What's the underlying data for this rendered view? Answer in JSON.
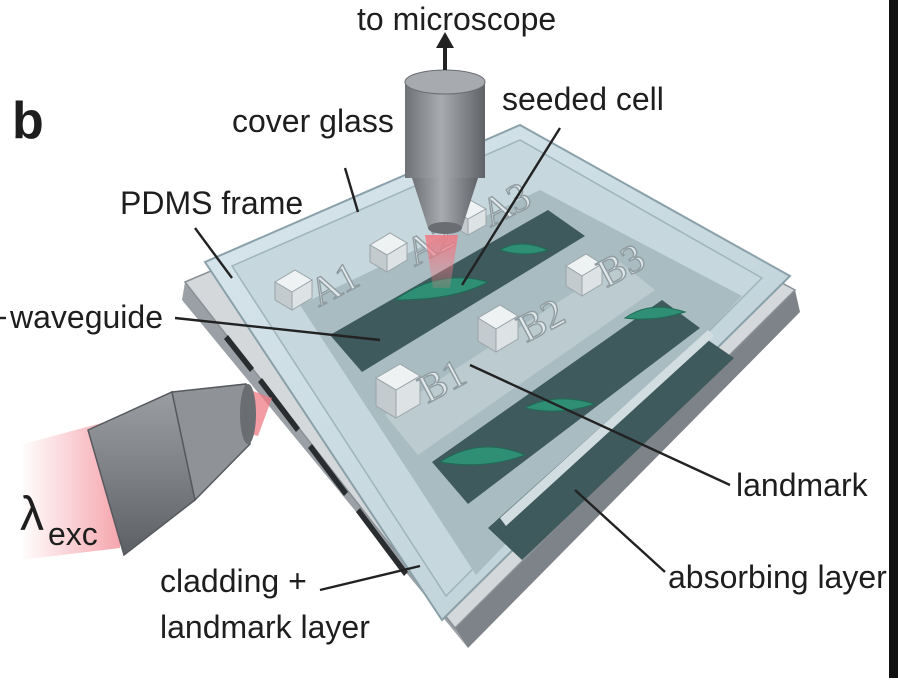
{
  "figure": {
    "panel_letter": "b",
    "labels": {
      "to_microscope": "to microscope",
      "seeded_cell": "seeded cell",
      "cover_glass": "cover glass",
      "pdms_frame": "PDMS frame",
      "waveguide": "waveguide",
      "lambda_symbol": "λ",
      "lambda_subscript": "exc",
      "cladding_line1": "cladding +",
      "cladding_line2": "landmark layer",
      "landmark": "landmark",
      "absorbing_layer": "absorbing layer"
    },
    "landmark_marks": [
      "A1",
      "A2",
      "A3",
      "B1",
      "B2",
      "B3"
    ],
    "colors": {
      "objective_gray": "#8a8d91",
      "laser_red": "#f07b86",
      "cover_glass": "#cfe1e8",
      "waveguide_dark": "#3f5a5c",
      "cell_green": "#2f8f74",
      "chip_edge": "#c9cdd1"
    }
  }
}
